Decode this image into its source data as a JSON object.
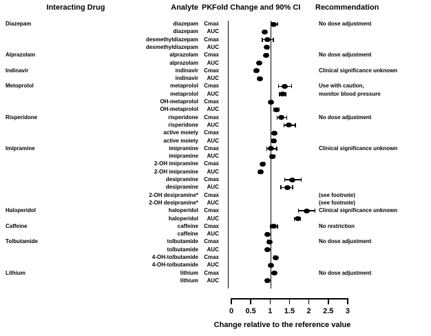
{
  "header": {
    "interacting_drug": "Interacting Drug",
    "analyte": "Analyte",
    "pk": "PK",
    "fold_change": "Fold Change and 90% CI",
    "recommendation": "Recommendation"
  },
  "axis": {
    "title": "Change relative to the reference value",
    "ticks": [
      0,
      0.5,
      1,
      1.5,
      2,
      2.5,
      3
    ],
    "tick_labels": [
      "0",
      "0.5",
      "1",
      "1.5",
      "2",
      "2.5",
      "3"
    ],
    "reference_value": 1
  },
  "chart_data": {
    "type": "scatter",
    "subtype": "forest-plot",
    "xlabel": "Change relative to the reference value",
    "xlim": [
      0,
      3
    ],
    "reference_line": 1,
    "legend": "points are PK fold-change estimates with 90% CI horizontal error bars",
    "rows": [
      {
        "drug": "Diazepam",
        "analyte": "diazepam",
        "pk": "Cmax",
        "value": 1.1,
        "lo": 1.03,
        "hi": 1.2,
        "rec": "No dose adjustment"
      },
      {
        "drug": "",
        "analyte": "diazepam",
        "pk": "AUC",
        "value": 0.86,
        "lo": 0.82,
        "hi": 0.9,
        "rec": ""
      },
      {
        "drug": "",
        "analyte": "desmethyldiazepam",
        "pk": "Cmax",
        "value": 0.93,
        "lo": 0.8,
        "hi": 1.08,
        "rec": ""
      },
      {
        "drug": "",
        "analyte": "desmethyldiazepam",
        "pk": "AUC",
        "value": 0.92,
        "lo": 0.88,
        "hi": 0.96,
        "rec": ""
      },
      {
        "drug": "Alprazolam",
        "analyte": "alprazolam",
        "pk": "Cmax",
        "value": 0.9,
        "lo": 0.86,
        "hi": 0.94,
        "rec": "No dose adjustment"
      },
      {
        "drug": "",
        "analyte": "alprazolam",
        "pk": "AUC",
        "value": 0.72,
        "lo": 0.68,
        "hi": 0.76,
        "rec": ""
      },
      {
        "drug": "Indinavir",
        "analyte": "indinavir",
        "pk": "Cmax",
        "value": 0.64,
        "lo": 0.6,
        "hi": 0.68,
        "rec": "Clinical significance unknown"
      },
      {
        "drug": "",
        "analyte": "indinavir",
        "pk": "AUC",
        "value": 0.73,
        "lo": 0.69,
        "hi": 0.77,
        "rec": ""
      },
      {
        "drug": "Metoprolol",
        "analyte": "metaprolol",
        "pk": "Cmax",
        "value": 1.38,
        "lo": 1.21,
        "hi": 1.55,
        "rec": "Use with caution,"
      },
      {
        "drug": "",
        "analyte": "metaprolol",
        "pk": "AUC",
        "value": 1.32,
        "lo": 1.24,
        "hi": 1.4,
        "rec": "monitor blood pressure"
      },
      {
        "drug": "",
        "analyte": "OH-metaprolol",
        "pk": "Cmax",
        "value": 1.02,
        "lo": 0.98,
        "hi": 1.06,
        "rec": ""
      },
      {
        "drug": "",
        "analyte": "OH-metaprolol",
        "pk": "AUC",
        "value": 1.16,
        "lo": 1.09,
        "hi": 1.23,
        "rec": ""
      },
      {
        "drug": "Risperidone",
        "analyte": "risperidone",
        "pk": "Cmax",
        "value": 1.29,
        "lo": 1.18,
        "hi": 1.43,
        "rec": "No dose adjustment"
      },
      {
        "drug": "",
        "analyte": "risperidone",
        "pk": "AUC",
        "value": 1.49,
        "lo": 1.36,
        "hi": 1.65,
        "rec": ""
      },
      {
        "drug": "",
        "analyte": "active moiety",
        "pk": "Cmax",
        "value": 1.11,
        "lo": 1.07,
        "hi": 1.15,
        "rec": ""
      },
      {
        "drug": "",
        "analyte": "active moiety",
        "pk": "AUC",
        "value": 1.1,
        "lo": 1.06,
        "hi": 1.14,
        "rec": ""
      },
      {
        "drug": "Imipramine",
        "analyte": "imipramine",
        "pk": "Cmax",
        "value": 1.03,
        "lo": 0.91,
        "hi": 1.17,
        "rec": "Clinical significance unknown"
      },
      {
        "drug": "",
        "analyte": "imipramine",
        "pk": "AUC",
        "value": 1.06,
        "lo": 1.0,
        "hi": 1.13,
        "rec": ""
      },
      {
        "drug": "",
        "analyte": "2-OH imipramine",
        "pk": "Cmax",
        "value": 0.81,
        "lo": 0.77,
        "hi": 0.85,
        "rec": ""
      },
      {
        "drug": "",
        "analyte": "2-OH imipramine",
        "pk": "AUC",
        "value": 0.76,
        "lo": 0.71,
        "hi": 0.81,
        "rec": ""
      },
      {
        "drug": "",
        "analyte": "desipramine",
        "pk": "Cmax",
        "value": 1.58,
        "lo": 1.37,
        "hi": 1.8,
        "rec": ""
      },
      {
        "drug": "",
        "analyte": "desipramine",
        "pk": "AUC",
        "value": 1.44,
        "lo": 1.28,
        "hi": 1.58,
        "rec": ""
      },
      {
        "drug": "",
        "analyte": "2-OH desipramine*",
        "pk": "Cmax",
        "value": null,
        "lo": null,
        "hi": null,
        "rec": "(see footnote)"
      },
      {
        "drug": "",
        "analyte": "2-OH desipramine*",
        "pk": "AUC",
        "value": null,
        "lo": null,
        "hi": null,
        "rec": "(see footnote)"
      },
      {
        "drug": "Haloperidol",
        "analyte": "haloperidol",
        "pk": "Cmax",
        "value": 1.95,
        "lo": 1.73,
        "hi": 2.16,
        "rec": "Clinical significance unknown"
      },
      {
        "drug": "",
        "analyte": "haloperidol",
        "pk": "AUC",
        "value": 1.71,
        "lo": 1.63,
        "hi": 1.79,
        "rec": ""
      },
      {
        "drug": "Caffeine",
        "analyte": "caffeine",
        "pk": "Cmax",
        "value": 1.09,
        "lo": 1.01,
        "hi": 1.19,
        "rec": "No restriction"
      },
      {
        "drug": "",
        "analyte": "caffeine",
        "pk": "AUC",
        "value": 0.93,
        "lo": 0.89,
        "hi": 0.97,
        "rec": ""
      },
      {
        "drug": "Tolbutamide",
        "analyte": "tolbutamide",
        "pk": "Cmax",
        "value": 0.98,
        "lo": 0.94,
        "hi": 1.02,
        "rec": "No dose adjustment"
      },
      {
        "drug": "",
        "analyte": "tolbutamide",
        "pk": "AUC",
        "value": 0.93,
        "lo": 0.89,
        "hi": 0.97,
        "rec": ""
      },
      {
        "drug": "",
        "analyte": "4-OH-tolbutamide",
        "pk": "Cmax",
        "value": 1.14,
        "lo": 1.1,
        "hi": 1.18,
        "rec": ""
      },
      {
        "drug": "",
        "analyte": "4-OH-tolbutamide",
        "pk": "AUC",
        "value": 1.02,
        "lo": 0.98,
        "hi": 1.06,
        "rec": ""
      },
      {
        "drug": "Lithium",
        "analyte": "lithium",
        "pk": "Cmax",
        "value": 1.11,
        "lo": 1.07,
        "hi": 1.15,
        "rec": "No dose adjustment"
      },
      {
        "drug": "",
        "analyte": "lithium",
        "pk": "AUC",
        "value": 0.93,
        "lo": 0.89,
        "hi": 0.97,
        "rec": ""
      }
    ],
    "colors": {
      "marker": "#000000",
      "line": "#000000",
      "background": "#ffffff"
    }
  }
}
